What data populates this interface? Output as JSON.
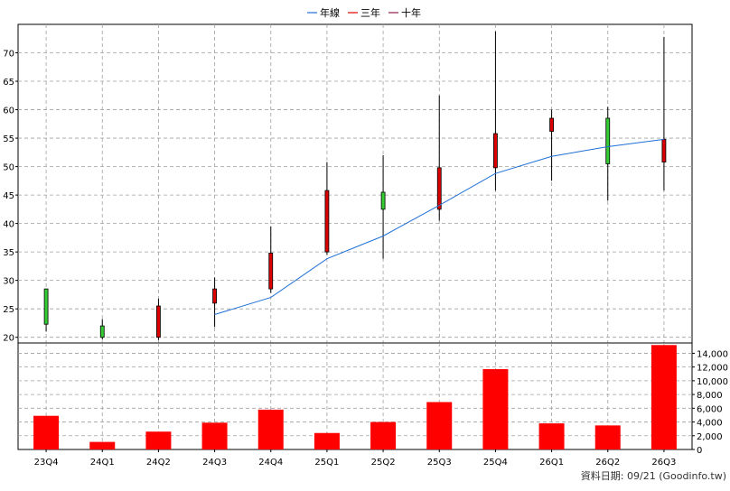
{
  "legend": [
    {
      "label": "年線",
      "color": "#1f6fd6"
    },
    {
      "label": "三年",
      "color": "#e00000"
    },
    {
      "label": "十年",
      "color": "#8b1a4a"
    }
  ],
  "footer": "資料日期: 09/21  (Goodinfo.tw)",
  "colors": {
    "up": "#dd0000",
    "down": "#33cc33",
    "volume": "#ff0000",
    "ma_line": "#1f6fd6",
    "grid": "#a0a0a0"
  },
  "chart_data": {
    "type": "candlestick-volume",
    "categories": [
      "23Q4",
      "24Q1",
      "24Q2",
      "24Q3",
      "24Q4",
      "25Q1",
      "25Q2",
      "25Q3",
      "25Q4",
      "26Q1",
      "26Q2",
      "26Q3"
    ],
    "price_axis": {
      "ylim": [
        19,
        75
      ],
      "ticks": [
        20,
        25,
        30,
        35,
        40,
        45,
        50,
        55,
        60,
        65,
        70
      ]
    },
    "volume_axis": {
      "ylim": [
        0,
        15500
      ],
      "ticks": [
        0,
        2000,
        4000,
        6000,
        8000,
        10000,
        12000,
        14000
      ],
      "tick_labels": [
        "0",
        "2,000",
        "4,000",
        "6,000",
        "8,000",
        "10,000",
        "12,000",
        "14,000"
      ]
    },
    "candles": [
      {
        "open": 28.5,
        "close": 22.3,
        "high": 28.5,
        "low": 21.0
      },
      {
        "open": 22.0,
        "close": 20.0,
        "high": 23.2,
        "low": 19.6
      },
      {
        "open": 20.0,
        "close": 25.5,
        "high": 26.8,
        "low": 19.5
      },
      {
        "open": 26.0,
        "close": 28.5,
        "high": 30.5,
        "low": 21.8
      },
      {
        "open": 28.5,
        "close": 34.8,
        "high": 39.5,
        "low": 27.8
      },
      {
        "open": 35.0,
        "close": 45.8,
        "high": 50.8,
        "low": 34.5
      },
      {
        "open": 45.5,
        "close": 42.5,
        "high": 52.0,
        "low": 33.8
      },
      {
        "open": 42.5,
        "close": 49.8,
        "high": 62.5,
        "low": 40.5
      },
      {
        "open": 49.8,
        "close": 55.8,
        "high": 73.8,
        "low": 45.8
      },
      {
        "open": 56.2,
        "close": 58.5,
        "high": 60.0,
        "low": 47.5
      },
      {
        "open": 58.5,
        "close": 50.5,
        "high": 60.5,
        "low": 44.0
      },
      {
        "open": 50.8,
        "close": 54.8,
        "high": 72.8,
        "low": 45.8
      }
    ],
    "ma_line": {
      "name": "年線",
      "start_index": 3,
      "values": [
        24.0,
        27.0,
        33.8,
        37.8,
        43.2,
        48.8,
        51.8,
        53.5,
        54.8
      ]
    },
    "volume": [
      4900,
      1100,
      2600,
      3900,
      5800,
      2400,
      4000,
      6900,
      11700,
      3800,
      3500,
      15200
    ]
  }
}
